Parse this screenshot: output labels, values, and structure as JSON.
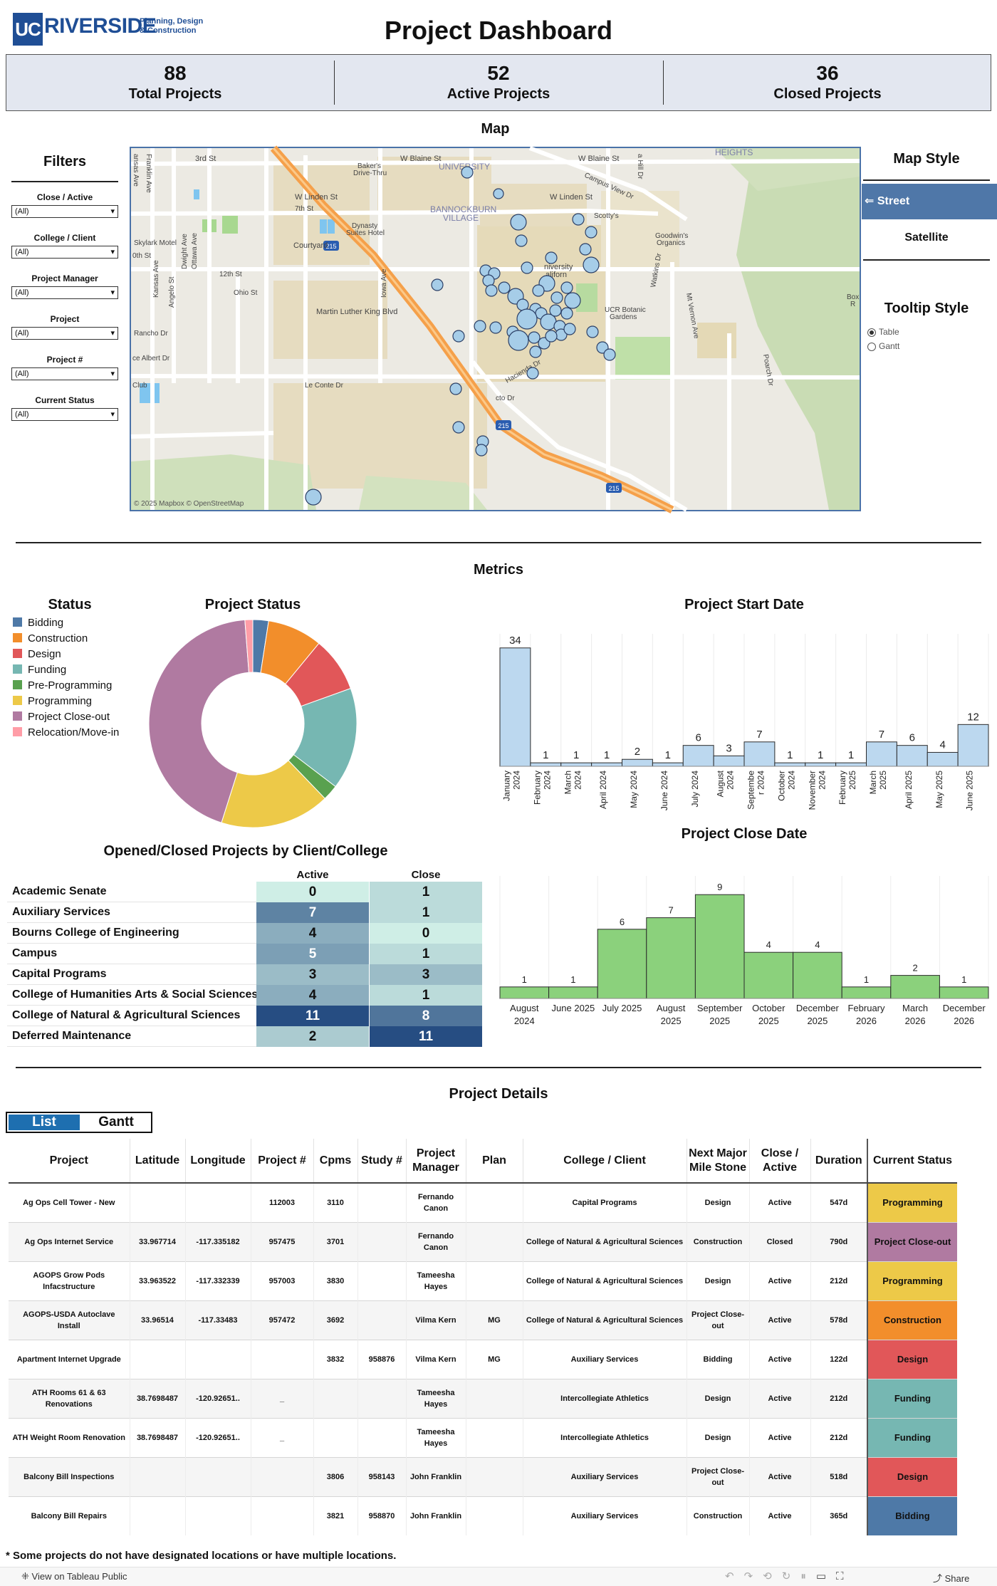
{
  "header": {
    "logo_uc": "UC",
    "logo_name": "RIVERSIDE",
    "logo_sub1": "Planning, Design",
    "logo_sub2": "& Construction",
    "title": "Project Dashboard"
  },
  "kpis": [
    {
      "value": "88",
      "label": "Total Projects"
    },
    {
      "value": "52",
      "label": "Active Projects"
    },
    {
      "value": "36",
      "label": "Closed Projects"
    }
  ],
  "map_section": {
    "title": "Map",
    "attribution": "© 2025 Mapbox  © OpenStreetMap",
    "labels": {
      "blaine1": "W Blaine St",
      "blaine2": "W Blaine St",
      "third": "3rd St",
      "linden": "W Linden St",
      "linden2": "W Linden St",
      "seventh": "7th St",
      "twelfth": "12th St",
      "ohio": "Ohio St",
      "mlk": "Martin Luther King Blvd",
      "bannockburn": "BANNOCKBURN",
      "village": "VILLAGE",
      "university": "UNIVERSITY",
      "heights": "HEIGHTS",
      "campusview": "Campus View Dr",
      "courtyard": "Courtyard",
      "skylark": "Skylark Motel",
      "dynasty": "Dynasty",
      "suites": "Suites Hotel",
      "bakers": "Baker's",
      "drivethru": "Drive-Thru",
      "scottys": "Scotty's",
      "goodwins": "Goodwin's",
      "organics": "Organics",
      "botanic1": "UCR Botanic",
      "botanic2": "Gardens",
      "lecorte": "Le Conte Dr",
      "hacienda": "Hacienda Dr",
      "rancho": "Rancho Dr",
      "albert": "ce Albert Dr",
      "iowa": "Iowa Ave",
      "kansas": "Kansas Ave",
      "angelo": "Angelo St",
      "dwight": "Dwight Ave",
      "ottawa": "Ottawa Ave",
      "watkins": "Watkins Dr",
      "mtvernon": "Mt Vernon Ave",
      "poarch": "Poarch Dr",
      "franklin": "Franklin Ave",
      "ansas": "ansas Ave",
      "tenth": "0th St",
      "club": "Club",
      "sto": "cto Dr",
      "hilldr": "a Hill Dr",
      "univ": "niversity",
      "calif": "aliforn",
      "boxr": "Box",
      "boxr2": "R",
      "i215": "215"
    }
  },
  "filters": {
    "title": "Filters",
    "items": [
      {
        "label": "Close / Active",
        "value": "(All)"
      },
      {
        "label": "College / Client",
        "value": "(All)"
      },
      {
        "label": "Project Manager",
        "value": "(All)"
      },
      {
        "label": "Project",
        "value": "(All)"
      },
      {
        "label": "Project #",
        "value": "(All)"
      },
      {
        "label": "Current Status",
        "value": "(All)"
      }
    ]
  },
  "map_style": {
    "title": "Map Style",
    "street": "⇐ Street",
    "satellite": "Satellite",
    "tooltip_title": "Tooltip Style",
    "tooltip_options": [
      "Table",
      "Gantt"
    ],
    "tooltip_selected": "Table"
  },
  "metrics": {
    "title": "Metrics",
    "legend_title": "Status",
    "legend": [
      {
        "label": "Bidding",
        "color": "#4e79a7"
      },
      {
        "label": "Construction",
        "color": "#f28e2b"
      },
      {
        "label": "Design",
        "color": "#e15759"
      },
      {
        "label": "Funding",
        "color": "#76b7b2"
      },
      {
        "label": "Pre-Programming",
        "color": "#59a14f"
      },
      {
        "label": "Programming",
        "color": "#edc948"
      },
      {
        "label": "Project Close-out",
        "color": "#b07aa1"
      },
      {
        "label": "Relocation/Move-in",
        "color": "#ff9da7"
      }
    ]
  },
  "client_table": {
    "title": "Opened/Closed Projects by Client/College",
    "col_active": "Active",
    "col_close": "Close",
    "rows": [
      {
        "name": "Academic Senate",
        "active": 0,
        "close": 1
      },
      {
        "name": "Auxiliary Services",
        "active": 7,
        "close": 1
      },
      {
        "name": "Bourns College of Engineering",
        "active": 4,
        "close": 0
      },
      {
        "name": "Campus",
        "active": 5,
        "close": 1
      },
      {
        "name": "Capital Programs",
        "active": 3,
        "close": 3
      },
      {
        "name": "College of Humanities Arts & Social Sciences",
        "active": 4,
        "close": 1
      },
      {
        "name": "College of Natural & Agricultural Sciences",
        "active": 11,
        "close": 8
      },
      {
        "name": "Deferred Maintenance",
        "active": 2,
        "close": 11
      }
    ]
  },
  "chart_data": [
    {
      "type": "pie",
      "title": "Project Status",
      "donut": true,
      "categories": [
        "Bidding",
        "Construction",
        "Design",
        "Funding",
        "Pre-Programming",
        "Programming",
        "Project Close-out",
        "Relocation/Move-in"
      ],
      "values": [
        2,
        7,
        7,
        13,
        2,
        14,
        36,
        1
      ],
      "colors": [
        "#4e79a7",
        "#f28e2b",
        "#e15759",
        "#76b7b2",
        "#59a14f",
        "#edc948",
        "#b07aa1",
        "#ff9da7"
      ]
    },
    {
      "type": "bar",
      "title": "Project Start Date",
      "categories": [
        "January 2024",
        "February 2024",
        "March 2024",
        "April 2024",
        "May 2024",
        "June 2024",
        "July 2024",
        "August 2024",
        "September 2024",
        "October 2024",
        "November 2024",
        "February 2025",
        "March 2025",
        "April 2025",
        "May 2025",
        "June 2025"
      ],
      "tick_lines": [
        [
          "January",
          "2024"
        ],
        [
          "February",
          "2024"
        ],
        [
          "March",
          "2024"
        ],
        [
          "April 2024"
        ],
        [
          "May 2024"
        ],
        [
          "June 2024"
        ],
        [
          "July 2024"
        ],
        [
          "August",
          "2024"
        ],
        [
          "Septembe",
          "r 2024"
        ],
        [
          "October",
          "2024"
        ],
        [
          "November",
          "2024"
        ],
        [
          "February",
          "2025"
        ],
        [
          "March",
          "2025"
        ],
        [
          "April 2025"
        ],
        [
          "May 2025"
        ],
        [
          "June 2025"
        ]
      ],
      "values": [
        34,
        1,
        1,
        1,
        2,
        1,
        6,
        3,
        7,
        1,
        1,
        1,
        7,
        6,
        4,
        12
      ],
      "ylim": [
        0,
        36
      ],
      "color": "#bcd8ef"
    },
    {
      "type": "bar",
      "title": "Project Close Date",
      "categories": [
        "August 2024",
        "June 2025",
        "July 2025",
        "August 2025",
        "September 2025",
        "October 2025",
        "December 2025",
        "February 2026",
        "March 2026",
        "December 2026"
      ],
      "tick_lines": [
        [
          "August",
          "2024"
        ],
        [
          "June 2025"
        ],
        [
          "July 2025"
        ],
        [
          "August",
          "2025"
        ],
        [
          "September",
          "2025"
        ],
        [
          "October",
          "2025"
        ],
        [
          "December",
          "2025"
        ],
        [
          "February",
          "2026"
        ],
        [
          "March",
          "2026"
        ],
        [
          "December",
          "2026"
        ]
      ],
      "values": [
        1,
        1,
        6,
        7,
        9,
        4,
        4,
        1,
        2,
        1
      ],
      "ylim": [
        0,
        10
      ],
      "color": "#8bd17c"
    }
  ],
  "details": {
    "title": "Project Details",
    "tab_list": "List",
    "tab_gantt": "Gantt",
    "columns": [
      "Project",
      "Latitude",
      "Longitude",
      "Project #",
      "Cpms",
      "Study #",
      "Project Manager",
      "Plan",
      "College / Client",
      "Next Major Mile Stone",
      "Close / Active",
      "Duration",
      "Current Status"
    ],
    "rows": [
      {
        "project": "Ag Ops Cell Tower - New",
        "lat": "",
        "lon": "",
        "pnum": "112003",
        "cpms": "3110",
        "study": "",
        "pm": "Fernando Canon",
        "plan": "",
        "client": "Capital Programs",
        "next": "Design",
        "ca": "Active",
        "dur": "547d",
        "status": "Programming"
      },
      {
        "project": "Ag Ops Internet Service",
        "lat": "33.967714",
        "lon": "-117.335182",
        "pnum": "957475",
        "cpms": "3701",
        "study": "",
        "pm": "Fernando Canon",
        "plan": "",
        "client": "College of Natural & Agricultural Sciences",
        "next": "Construction",
        "ca": "Closed",
        "dur": "790d",
        "status": "Project Close-out"
      },
      {
        "project": "AGOPS Grow Pods Infacstructure",
        "lat": "33.963522",
        "lon": "-117.332339",
        "pnum": "957003",
        "cpms": "3830",
        "study": "",
        "pm": "Tameesha Hayes",
        "plan": "",
        "client": "College of Natural & Agricultural Sciences",
        "next": "Design",
        "ca": "Active",
        "dur": "212d",
        "status": "Programming"
      },
      {
        "project": "AGOPS-USDA Autoclave Install",
        "lat": "33.96514",
        "lon": "-117.33483",
        "pnum": "957472",
        "cpms": "3692",
        "study": "",
        "pm": "Vilma Kern",
        "plan": "MG",
        "client": "College of Natural & Agricultural Sciences",
        "next": "Project Close-out",
        "ca": "Active",
        "dur": "578d",
        "status": "Construction"
      },
      {
        "project": "Apartment Internet Upgrade",
        "lat": "",
        "lon": "",
        "pnum": "",
        "cpms": "3832",
        "study": "958876",
        "pm": "Vilma Kern",
        "plan": "MG",
        "client": "Auxiliary Services",
        "next": "Bidding",
        "ca": "Active",
        "dur": "122d",
        "status": "Design"
      },
      {
        "project": "ATH Rooms 61 & 63 Renovations",
        "lat": "38.7698487",
        "lon": "-120.92651..",
        "pnum": "_",
        "cpms": "",
        "study": "",
        "pm": "Tameesha Hayes",
        "plan": "",
        "client": "Intercollegiate Athletics",
        "next": "Design",
        "ca": "Active",
        "dur": "212d",
        "status": "Funding"
      },
      {
        "project": "ATH Weight Room Renovation",
        "lat": "38.7698487",
        "lon": "-120.92651..",
        "pnum": "_",
        "cpms": "",
        "study": "",
        "pm": "Tameesha Hayes",
        "plan": "",
        "client": "Intercollegiate Athletics",
        "next": "Design",
        "ca": "Active",
        "dur": "212d",
        "status": "Funding"
      },
      {
        "project": "Balcony Bill Inspections",
        "lat": "",
        "lon": "",
        "pnum": "",
        "cpms": "3806",
        "study": "958143",
        "pm": "John Franklin",
        "plan": "",
        "client": "Auxiliary Services",
        "next": "Project Close-out",
        "ca": "Active",
        "dur": "518d",
        "status": "Design"
      },
      {
        "project": "Balcony Bill Repairs",
        "lat": "",
        "lon": "",
        "pnum": "",
        "cpms": "3821",
        "study": "958870",
        "pm": "John Franklin",
        "plan": "",
        "client": "Auxiliary Services",
        "next": "Construction",
        "ca": "Active",
        "dur": "365d",
        "status": "Bidding"
      }
    ],
    "footnote": "* Some projects do not have designated locations or have multiple locations."
  },
  "tableau_bar": {
    "view_label": "View on Tableau Public",
    "share_label": "Share",
    "icons": [
      "undo-icon",
      "redo-icon",
      "revert-icon",
      "refresh-icon",
      "pause-icon",
      "comment-icon",
      "fullscreen-icon",
      "share-icon"
    ]
  }
}
